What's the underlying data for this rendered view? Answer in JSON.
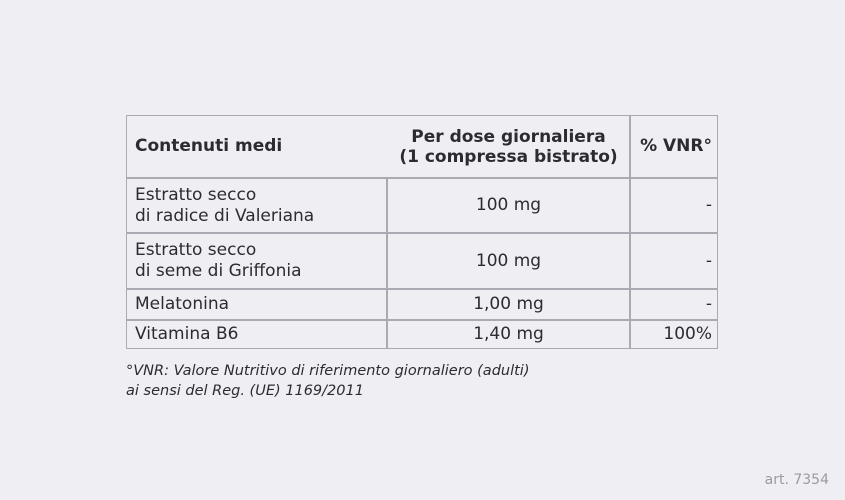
{
  "table": {
    "headers": [
      "Contenuti medi",
      "Per dose giornaliera\n(1 compressa bistrato)",
      "% VNR°"
    ],
    "rows": [
      {
        "name": "Estratto secco\ndi radice di Valeriana",
        "dose": "100 mg",
        "vnr": "-"
      },
      {
        "name": "Estratto secco\ndi seme di Griffonia",
        "dose": "100 mg",
        "vnr": "-"
      },
      {
        "name": "Melatonina",
        "dose": "1,00 mg",
        "vnr": "-"
      },
      {
        "name": "Vitamina B6",
        "dose": "1,40 mg",
        "vnr": "100%"
      }
    ]
  },
  "footnote": {
    "line1": "°VNR: Valore Nutritivo di riferimento giornaliero (adulti)",
    "line2": "ai sensi del Reg. (UE) 1169/2011"
  },
  "article_code": "art. 7354",
  "colors": {
    "background": "#efeff3",
    "text": "#2b2b30",
    "border": "#a9aab2"
  }
}
